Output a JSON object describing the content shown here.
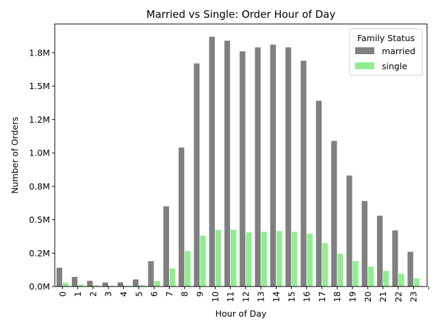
{
  "chart_data": {
    "type": "bar",
    "title": "Married vs Single: Order Hour of Day",
    "xlabel": "Hour of Day",
    "ylabel": "Number of Orders",
    "categories": [
      "0",
      "1",
      "2",
      "3",
      "4",
      "5",
      "6",
      "7",
      "8",
      "9",
      "10",
      "11",
      "12",
      "13",
      "14",
      "15",
      "16",
      "17",
      "18",
      "19",
      "20",
      "21",
      "22",
      "23"
    ],
    "series": [
      {
        "name": "married",
        "color": "#808080",
        "values": [
          140000,
          72000,
          43000,
          30000,
          31000,
          53000,
          190000,
          600000,
          1040000,
          1670000,
          1870000,
          1840000,
          1760000,
          1790000,
          1810000,
          1790000,
          1690000,
          1390000,
          1090000,
          830000,
          640000,
          530000,
          420000,
          260000
        ]
      },
      {
        "name": "single",
        "color": "#90ee90",
        "values": [
          28000,
          14000,
          8000,
          6000,
          6000,
          10000,
          40000,
          135000,
          265000,
          380000,
          425000,
          425000,
          405000,
          410000,
          415000,
          410000,
          395000,
          325000,
          245000,
          190000,
          148000,
          118000,
          95000,
          60000
        ]
      }
    ],
    "yticks": [
      0,
      250000,
      500000,
      750000,
      1000000,
      1250000,
      1500000,
      1750000
    ],
    "ytick_labels": [
      "0.0M",
      "0.2M",
      "0.5M",
      "0.8M",
      "1.0M",
      "1.2M",
      "1.5M",
      "1.8M"
    ],
    "ylim": [
      0,
      1965000
    ],
    "legend": {
      "title": "Family Status",
      "placement": "top-right"
    },
    "grid": false
  }
}
